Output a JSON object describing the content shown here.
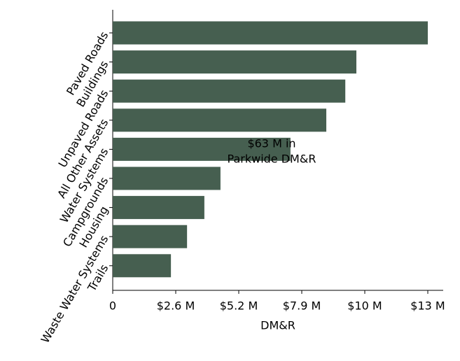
{
  "chart_data": {
    "type": "barh",
    "categories": [
      "Paved Roads",
      "Buildings",
      "Unpaved Roads",
      "All Other Assets",
      "Water Systems",
      "Campgrounds",
      "Housing",
      "Waste Water Systems",
      "Trails"
    ],
    "values": [
      13.1,
      10.13,
      9.67,
      8.88,
      7.39,
      4.48,
      3.81,
      3.09,
      2.42
    ],
    "color": "#465f50",
    "xlabel": "DM&R",
    "annotation": [
      "$63 M in",
      "Parkwide DM&R"
    ],
    "xlim": [
      0,
      13.74
    ],
    "xticks": [
      0,
      {
        "value": 2.62,
        "label": "$2.6 M"
      },
      {
        "value": 5.24,
        "label": "$5.2 M"
      },
      {
        "value": 7.86,
        "label": "$7.9 M"
      },
      {
        "value": 10.48,
        "label": "$10 M"
      },
      {
        "value": 13.1,
        "label": "$13 M"
      }
    ]
  }
}
